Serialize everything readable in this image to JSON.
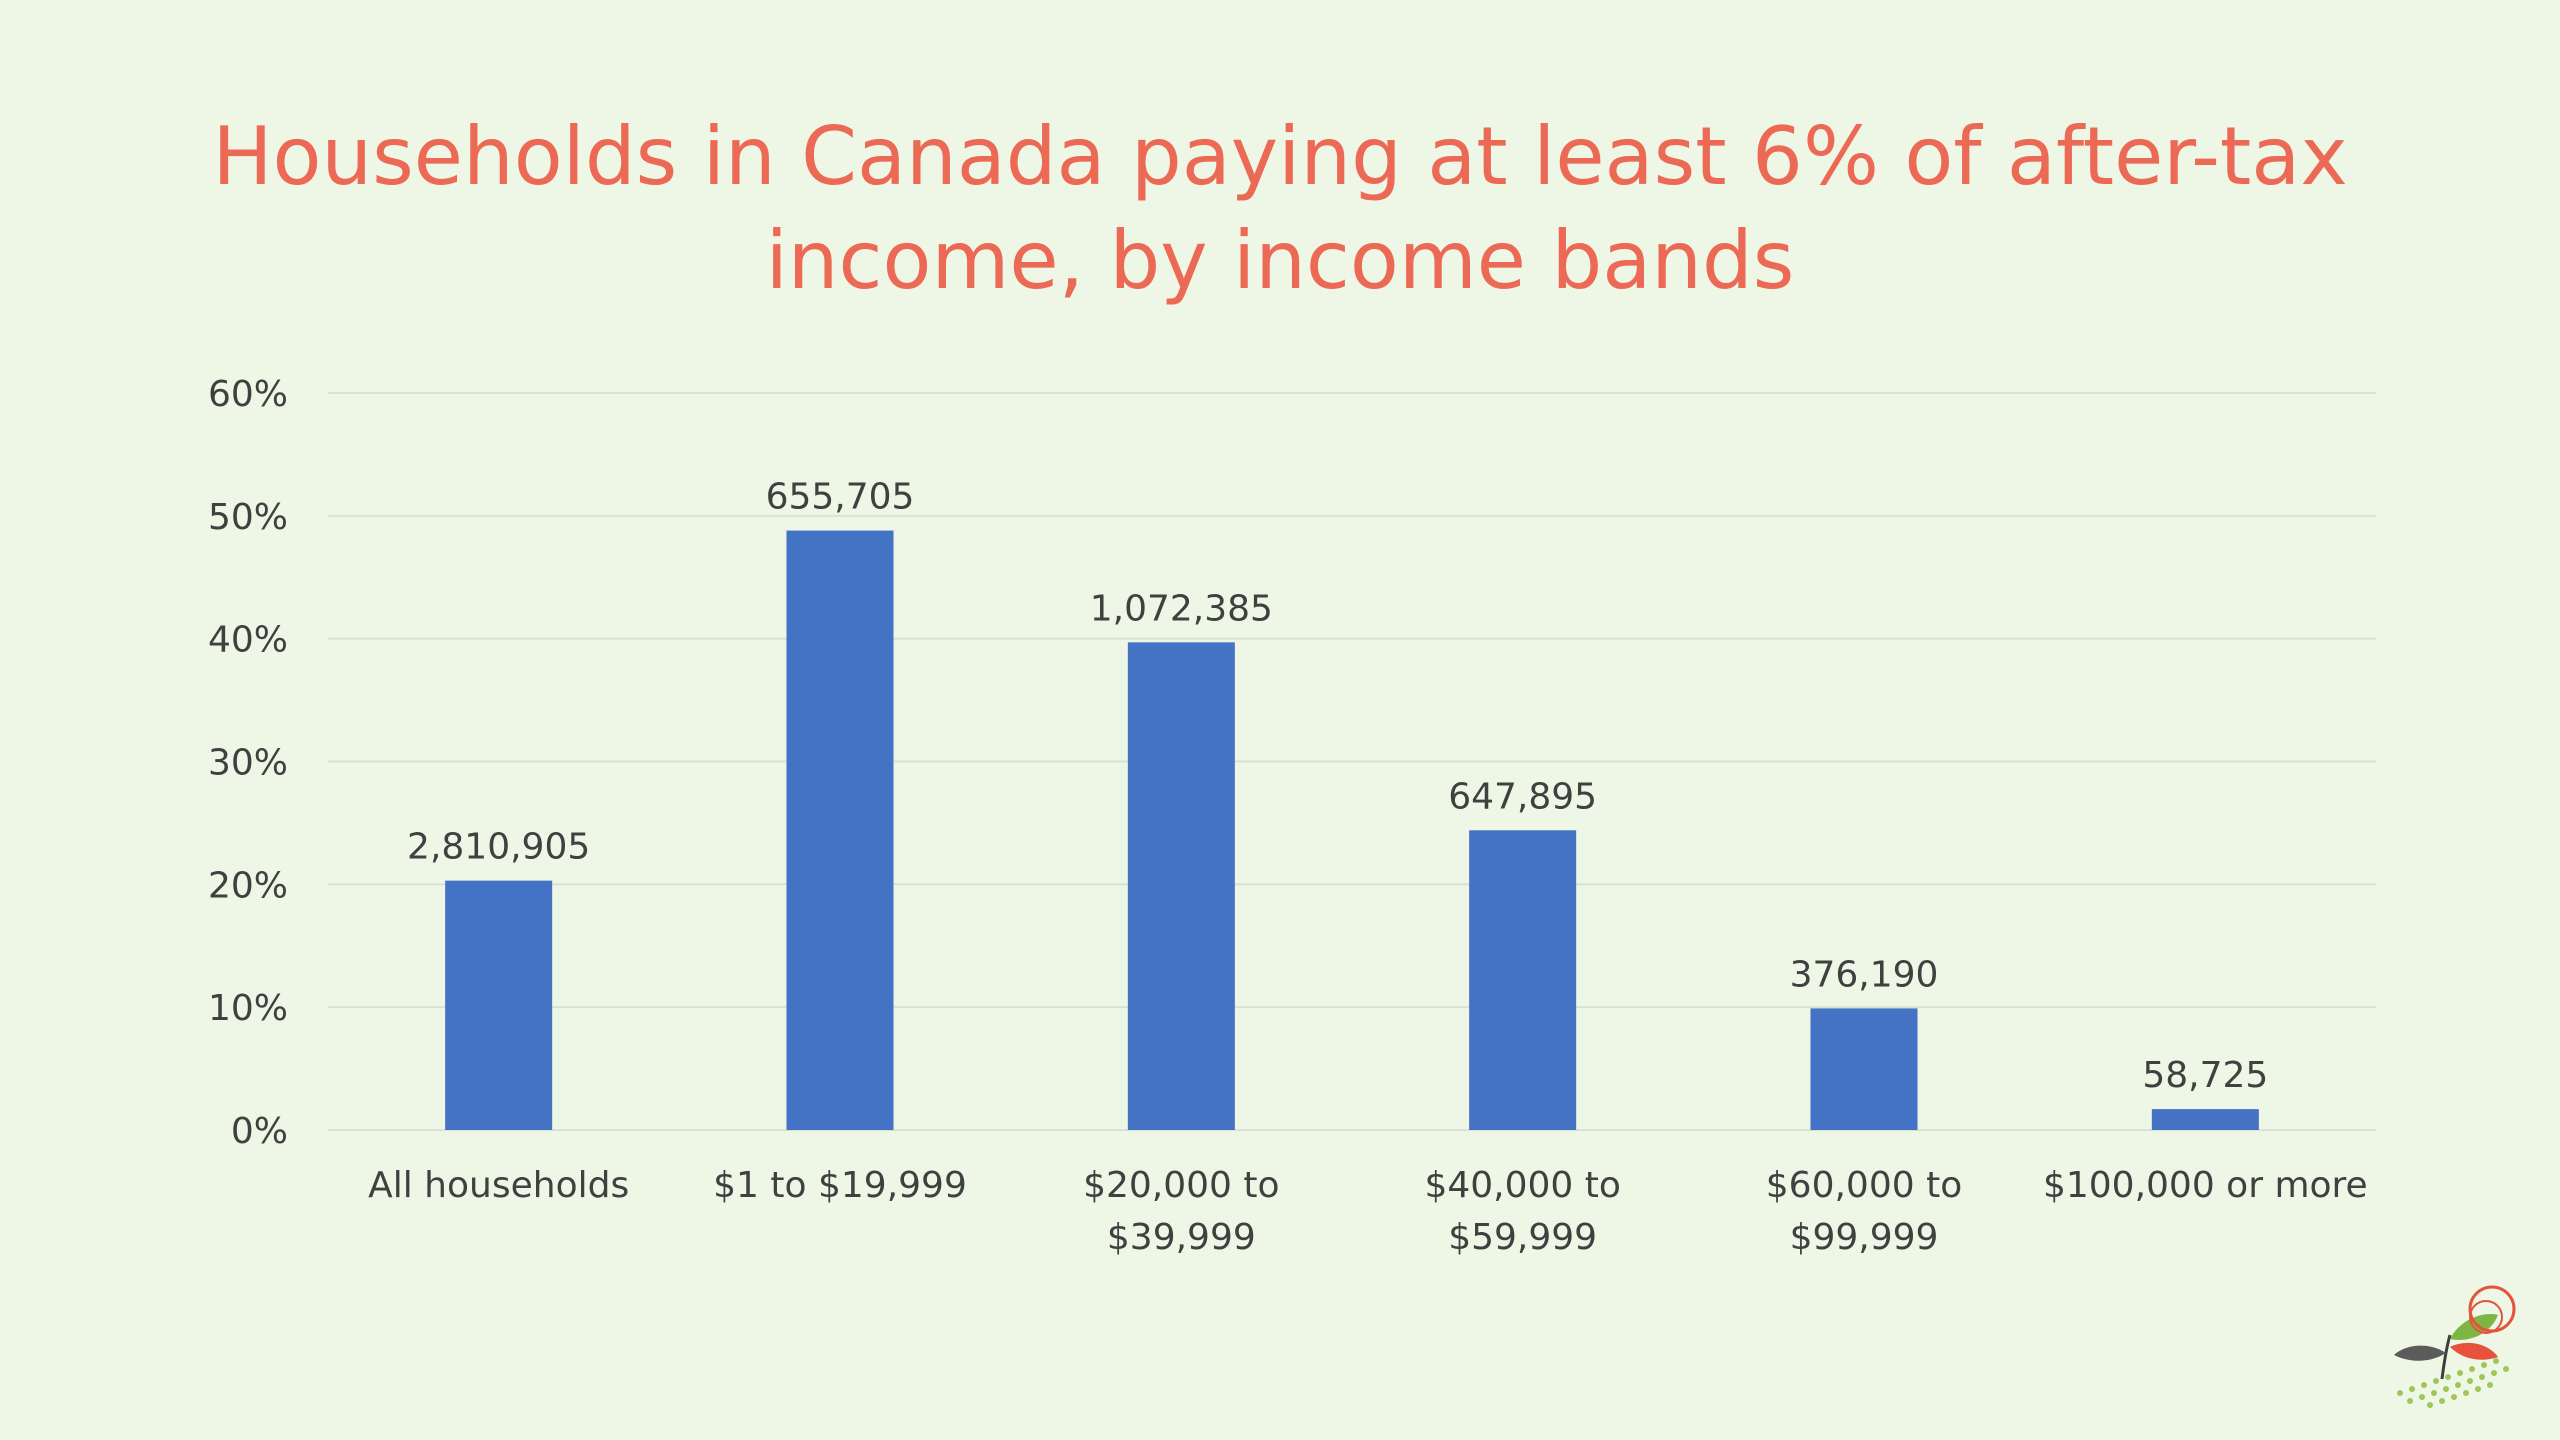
{
  "chart_data": {
    "type": "bar",
    "title_lines": [
      "Households in Canada paying at least 6% of after-tax",
      "income, by income bands"
    ],
    "categories": [
      [
        "All households"
      ],
      [
        "$1 to $19,999"
      ],
      [
        "$20,000 to",
        "$39,999"
      ],
      [
        "$40,000 to",
        "$59,999"
      ],
      [
        "$60,000 to",
        "$99,999"
      ],
      [
        "$100,000 or more"
      ]
    ],
    "values": [
      20.3,
      48.8,
      39.7,
      24.4,
      9.9,
      1.7
    ],
    "data_labels": [
      "2,810,905",
      "655,705",
      "1,072,385",
      "647,895",
      "376,190",
      "58,725"
    ],
    "ylim": [
      0,
      60
    ],
    "yticks": [
      0,
      10,
      20,
      30,
      40,
      50,
      60
    ],
    "ytick_labels": [
      "0%",
      "10%",
      "20%",
      "30%",
      "40%",
      "50%",
      "60%"
    ],
    "grid": true,
    "xlabel": "",
    "ylabel": "",
    "colors": {
      "bar": "#4472c4",
      "title": "#ec6a55",
      "text": "#404040",
      "grid": "#d9e2d3"
    }
  },
  "logo": {
    "icon": "sprout-logo-icon"
  }
}
